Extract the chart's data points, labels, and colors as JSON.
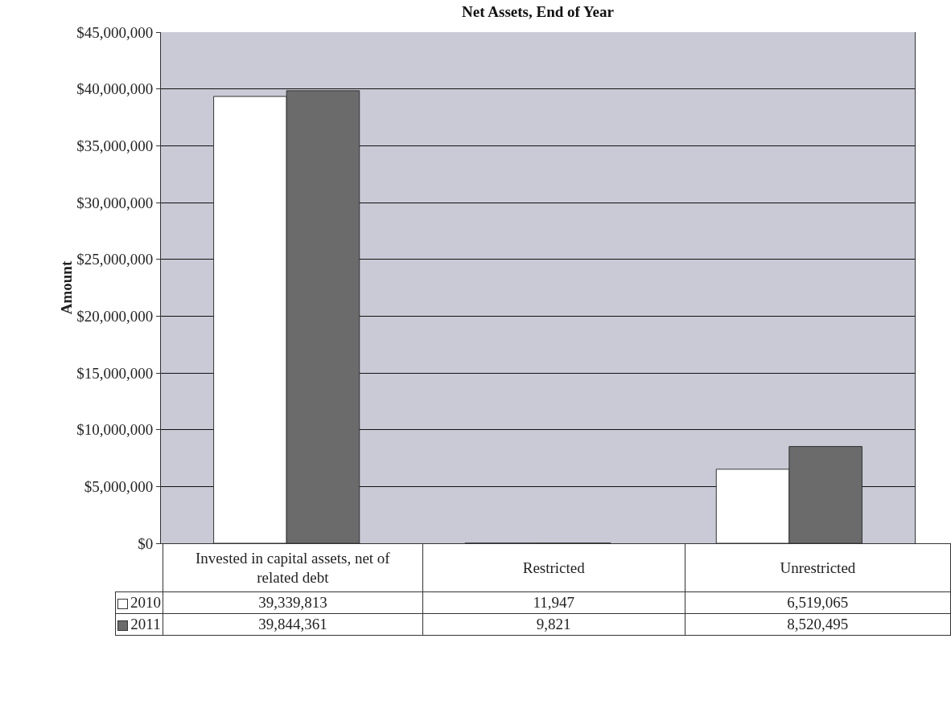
{
  "chart_data": {
    "type": "bar",
    "title": "Net Assets, End of Year",
    "ylabel": "Amount",
    "categories": [
      "Invested in capital assets, net of related debt",
      "Restricted",
      "Unrestricted"
    ],
    "series": [
      {
        "name": "2010",
        "color": "#ffffff",
        "values": [
          39339813,
          11947,
          6519065
        ],
        "value_labels": [
          "39,339,813",
          "11,947",
          "6,519,065"
        ]
      },
      {
        "name": "2011",
        "color": "#6b6b6b",
        "values": [
          39844361,
          9821,
          8520495
        ],
        "value_labels": [
          "39,844,361",
          "9,821",
          "8,520,495"
        ]
      }
    ],
    "ylim": [
      0,
      45000000
    ],
    "yticks": [
      {
        "value": 0,
        "label": "$0"
      },
      {
        "value": 5000000,
        "label": "$5,000,000"
      },
      {
        "value": 10000000,
        "label": "$10,000,000"
      },
      {
        "value": 15000000,
        "label": "$15,000,000"
      },
      {
        "value": 20000000,
        "label": "$20,000,000"
      },
      {
        "value": 25000000,
        "label": "$25,000,000"
      },
      {
        "value": 30000000,
        "label": "$30,000,000"
      },
      {
        "value": 35000000,
        "label": "$35,000,000"
      },
      {
        "value": 40000000,
        "label": "$40,000,000"
      },
      {
        "value": 45000000,
        "label": "$45,000,000"
      }
    ],
    "grid": "y",
    "legend": "bottom left"
  }
}
